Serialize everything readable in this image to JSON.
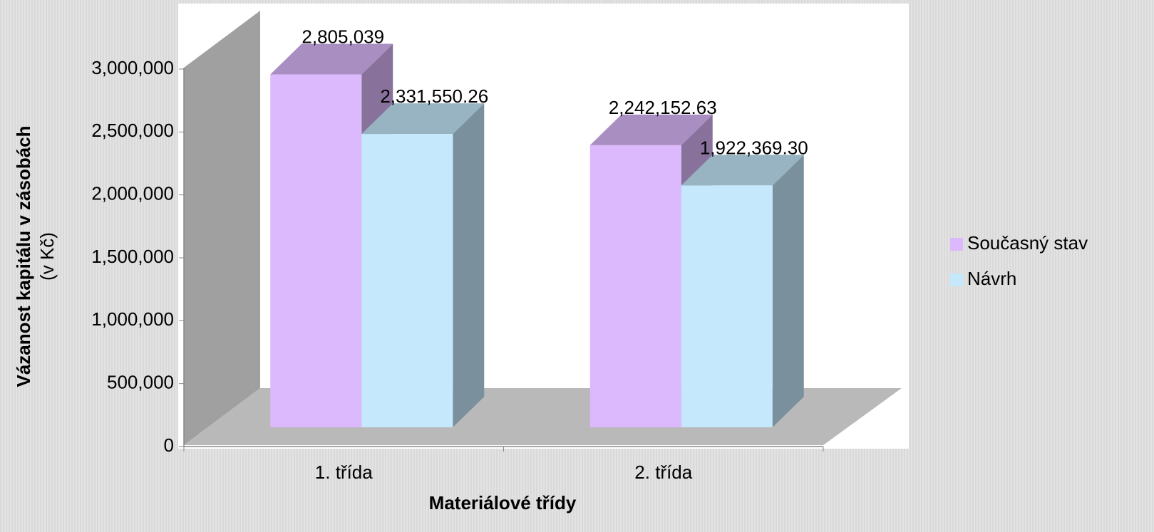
{
  "chart_data": {
    "type": "bar3d",
    "x_label": "Materiálové třídy",
    "y_label": "Vázanost kapitálu v zásobách",
    "y_label_sub": "(v Kč)",
    "categories": [
      "1. třída",
      "2. třída"
    ],
    "series": [
      {
        "name": "Současný stav",
        "color": "#dcb8fc",
        "values": [
          2805039,
          2242152.63
        ],
        "value_labels": [
          "2,805,039",
          "2,242,152.63"
        ]
      },
      {
        "name": "Návrh",
        "color": "#c5e8fc",
        "values": [
          2331550.26,
          1922369.3
        ],
        "value_labels": [
          "2,331,550.26",
          "1,922,369.30"
        ]
      }
    ],
    "ylim": [
      0,
      3000000
    ],
    "yticks": [
      0,
      {
        "value": 500000,
        "label": "500,000"
      },
      {
        "value": 1000000,
        "label": "1,000,000"
      },
      {
        "value": 1500000,
        "label": "1,500,000"
      },
      {
        "value": 2000000,
        "label": "2,000,000"
      },
      {
        "value": 2500000,
        "label": "2,500,000"
      },
      {
        "value": 3000000,
        "label": "3,000,000"
      }
    ],
    "legend": "right"
  }
}
